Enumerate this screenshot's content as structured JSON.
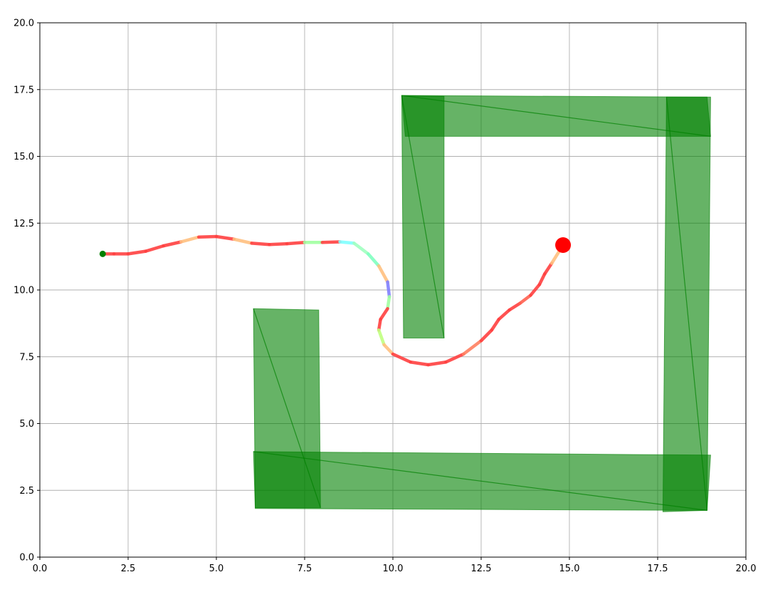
{
  "chart_data": {
    "type": "scatter",
    "title": "",
    "xlabel": "",
    "ylabel": "",
    "xlim": [
      0,
      20
    ],
    "ylim": [
      0,
      20
    ],
    "grid": true,
    "x_ticks": [
      "0.0",
      "2.5",
      "5.0",
      "7.5",
      "10.0",
      "12.5",
      "15.0",
      "17.5",
      "20.0"
    ],
    "y_ticks": [
      "0.0",
      "2.5",
      "5.0",
      "7.5",
      "10.0",
      "12.5",
      "15.0",
      "17.5",
      "20.0"
    ],
    "obstacle_color": "#008000",
    "obstacles": [
      [
        [
          10.25,
          17.28
        ],
        [
          11.45,
          17.25
        ],
        [
          11.45,
          8.2
        ],
        [
          10.3,
          8.2
        ]
      ],
      [
        [
          10.25,
          17.28
        ],
        [
          18.9,
          17.22
        ],
        [
          19.0,
          15.75
        ],
        [
          10.35,
          15.75
        ]
      ],
      [
        [
          17.75,
          17.22
        ],
        [
          19.0,
          17.22
        ],
        [
          18.9,
          1.75
        ],
        [
          17.65,
          1.7
        ]
      ],
      [
        [
          6.05,
          9.3
        ],
        [
          7.9,
          9.25
        ],
        [
          7.95,
          1.85
        ],
        [
          6.1,
          1.85
        ]
      ],
      [
        [
          6.05,
          3.95
        ],
        [
          19.0,
          3.82
        ],
        [
          18.9,
          1.75
        ],
        [
          6.1,
          1.82
        ]
      ]
    ],
    "path": {
      "x": [
        1.78,
        2.1,
        2.5,
        3.0,
        3.5,
        4.0,
        4.5,
        5.0,
        5.5,
        6.0,
        6.5,
        7.0,
        7.5,
        8.0,
        8.5,
        8.9,
        9.3,
        9.6,
        9.85,
        9.9,
        9.85,
        9.65,
        9.6,
        9.75,
        10.0,
        10.5,
        11.0,
        11.5,
        12.0,
        12.5,
        12.8,
        13.0,
        13.3,
        13.6,
        13.9,
        14.15,
        14.3,
        14.5,
        14.82
      ],
      "y": [
        11.35,
        11.35,
        11.35,
        11.45,
        11.65,
        11.8,
        11.98,
        12.0,
        11.9,
        11.75,
        11.7,
        11.73,
        11.78,
        11.78,
        11.8,
        11.75,
        11.35,
        10.9,
        10.3,
        9.75,
        9.3,
        8.9,
        8.5,
        7.95,
        7.6,
        7.3,
        7.2,
        7.3,
        7.6,
        8.1,
        8.5,
        8.9,
        9.25,
        9.5,
        9.8,
        10.2,
        10.6,
        11.0,
        11.68
      ],
      "segment_colors": [
        "#ff4040",
        "#ff4040",
        "#ff4040",
        "#ff4040",
        "#ff4040",
        "#ffc080",
        "#ff4040",
        "#ff4040",
        "#ffc080",
        "#ff4040",
        "#ff4040",
        "#ff4040",
        "#a0ffa0",
        "#ff4040",
        "#80ffff",
        "#a0ffc0",
        "#80ffc0",
        "#ffc080",
        "#8080ff",
        "#a0ffa0",
        "#ff4040",
        "#ff4040",
        "#c0ff80",
        "#ffc080",
        "#ff4040",
        "#ff4040",
        "#ff4040",
        "#ff4040",
        "#ff8060",
        "#ff4040",
        "#ff4040",
        "#ff4040",
        "#ff4040",
        "#ff6050",
        "#ff4040",
        "#ff4040",
        "#ff4040",
        "#ffc080"
      ]
    },
    "start_point": {
      "x": 1.78,
      "y": 11.35,
      "color": "#008000"
    },
    "goal_point": {
      "x": 14.82,
      "y": 11.68,
      "color": "#ff0000"
    }
  }
}
